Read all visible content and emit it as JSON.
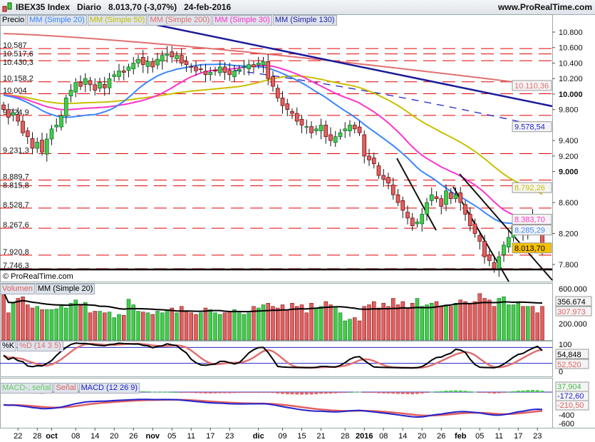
{
  "header": {
    "title": "IBEX35 Index   Diario   8.013,70 (-3,07%)   24-feb-2016",
    "site": "www.ProRealTime.com"
  },
  "price_legend": [
    {
      "label": "Precio",
      "color": "#000000"
    },
    {
      "label": "MM (Simple 20)",
      "color": "#3a86ff"
    },
    {
      "label": "MM (Simple 50)",
      "color": "#c8c000"
    },
    {
      "label": "MM (Simple 200)",
      "color": "#e07070"
    },
    {
      "label": "MM (Simple 30)",
      "color": "#ff33cc"
    },
    {
      "label": "MM (Simple 130)",
      "color": "#2222aa"
    }
  ],
  "volume_legend": [
    {
      "label": "Volumen",
      "color": "#e06060"
    },
    {
      "label": "MM (Simple 20)",
      "color": "#000000"
    }
  ],
  "stoch_legend": [
    {
      "label": "%K",
      "color": "#000000"
    },
    {
      "label": "%D (14 3 5)",
      "color": "#e07070"
    }
  ],
  "macd_legend": [
    {
      "label": "MACD-, señal",
      "color": "#66cc66"
    },
    {
      "label": "Señal",
      "color": "#e06060"
    },
    {
      "label": "MACD (12 26 9)",
      "color": "#2222cc"
    }
  ],
  "copyright": "© ProRealTime.com",
  "chart_data": {
    "type": "candlestick",
    "instrument": "IBEX35 Index",
    "period": "Diario",
    "last": "8.013,70",
    "change": "-3,07%",
    "date": "24-feb-2016",
    "ylim": [
      7600,
      10900
    ],
    "price_axis_ticks": [
      "10.800",
      "10.600",
      "10.400",
      "10.200",
      "10.000",
      "9.800",
      "9.400",
      "9.200",
      "9.000",
      "8.600",
      "8.200",
      "7.800"
    ],
    "price_axis_values": [
      10800,
      10600,
      10400,
      10200,
      10000,
      9800,
      9400,
      9200,
      9000,
      8600,
      8200,
      7800
    ],
    "levels": [
      {
        "label": "10.587",
        "v": 10587
      },
      {
        "label": "10.517,6",
        "v": 10517.6
      },
      {
        "label": "10.430,3",
        "v": 10430.3
      },
      {
        "label": "10.158,2",
        "v": 10158.2
      },
      {
        "label": "10.004",
        "v": 10004
      },
      {
        "label": "9.724,9",
        "v": 9724.9
      },
      {
        "label": "9.231,3",
        "v": 9231.3
      },
      {
        "label": "8.889,7",
        "v": 8889.7
      },
      {
        "label": "8.815,8",
        "v": 8815.8
      },
      {
        "label": "8.528,7",
        "v": 8528.7
      },
      {
        "label": "8.267,6",
        "v": 8267.6
      },
      {
        "label": "7.920,8",
        "v": 7920.8
      },
      {
        "label": "7.746,3",
        "v": 7746.3
      }
    ],
    "value_tags": [
      {
        "label": "10.110,36",
        "v": 10110.36,
        "color": "#e07070"
      },
      {
        "label": "9.578,54",
        "v": 9578.54,
        "color": "#2222cc"
      },
      {
        "label": "8.792,26",
        "v": 8792.26,
        "color": "#c8c000"
      },
      {
        "label": "8.383,70",
        "v": 8383.7,
        "color": "#ff33cc"
      },
      {
        "label": "8.285,29",
        "v": 8285.29,
        "color": "#3a86ff"
      },
      {
        "label": "8.013,70",
        "v": 8013.7,
        "color": "#000000",
        "bg": "#f5c000"
      }
    ],
    "closes": [
      9800,
      9700,
      9760,
      9650,
      9500,
      9450,
      9300,
      9380,
      9250,
      9420,
      9550,
      9600,
      9720,
      9950,
      10050,
      10150,
      10100,
      10200,
      10120,
      10050,
      10150,
      10080,
      10200,
      10250,
      10300,
      10280,
      10350,
      10400,
      10450,
      10380,
      10420,
      10350,
      10450,
      10500,
      10520,
      10480,
      10500,
      10400,
      10380,
      10350,
      10300,
      10320,
      10250,
      10280,
      10300,
      10350,
      10280,
      10250,
      10300,
      10320,
      10350,
      10380,
      10350,
      10400,
      10420,
      10200,
      10100,
      9950,
      9850,
      9800,
      9750,
      9650,
      9600,
      9580,
      9500,
      9550,
      9600,
      9450,
      9400,
      9450,
      9500,
      9550,
      9600,
      9550,
      9500,
      9200,
      9150,
      9100,
      8950,
      8900,
      8850,
      8700,
      8600,
      8500,
      8400,
      8300,
      8350,
      8450,
      8600,
      8700,
      8650,
      8550,
      8750,
      8650,
      8700,
      8600,
      8450,
      8300,
      8200,
      8100,
      7900,
      7850,
      7750,
      7900,
      8050,
      8150,
      8300,
      8350,
      8200,
      8400,
      8350,
      8250,
      8013.7
    ],
    "ma200": {
      "start": 10780,
      "end": 10110.36
    },
    "ma130": {
      "start": 10560,
      "end": 9578.54
    },
    "volume_k": [
      560,
      300,
      420,
      480,
      500,
      400,
      360,
      380,
      340,
      340,
      340,
      350,
      400,
      360,
      420,
      460,
      400,
      430,
      300,
      320,
      320,
      300,
      310,
      240,
      280,
      270,
      470,
      400,
      320,
      310,
      300,
      280,
      320,
      300,
      340,
      360,
      300,
      380,
      320,
      300,
      280,
      300,
      360,
      340,
      300,
      280,
      300,
      320,
      340,
      300,
      280,
      300,
      380,
      360,
      400,
      420,
      380,
      360,
      400,
      340,
      420,
      380,
      400,
      300,
      420,
      360,
      380,
      440,
      400,
      380,
      300,
      200,
      220,
      240,
      200,
      380,
      400,
      440,
      360,
      420,
      380,
      480,
      400,
      440,
      360,
      420,
      480,
      380,
      400,
      420,
      440,
      380,
      400,
      380,
      420,
      460,
      440,
      420,
      440,
      540,
      480,
      460,
      380,
      480,
      500,
      400,
      400,
      420,
      380,
      380,
      380,
      300,
      380
    ],
    "volume_axis": [
      "600.000",
      "200.000"
    ],
    "volume_tags": [
      {
        "label": "356.674",
        "color": "#000000"
      },
      {
        "label": "307.973",
        "color": "#e06060"
      }
    ],
    "stoch_axis": [
      "100",
      "0"
    ],
    "stoch_tags": [
      {
        "label": "54,848",
        "color": "#000000"
      },
      {
        "label": "52,520",
        "color": "#e06060"
      }
    ],
    "macd_axis": [
      "-400",
      "-600"
    ],
    "macd_tags": [
      {
        "label": "37,904",
        "color": "#44bb44"
      },
      {
        "label": "-172,60",
        "color": "#2222cc"
      },
      {
        "label": "-210,50",
        "color": "#e06060"
      }
    ],
    "x_ticks": [
      {
        "label": "22",
        "i": 3
      },
      {
        "label": "28",
        "i": 7
      },
      {
        "label": "oct",
        "i": 10,
        "bold": true
      },
      {
        "label": "08",
        "i": 15
      },
      {
        "label": "14",
        "i": 19
      },
      {
        "label": "20",
        "i": 23
      },
      {
        "label": "26",
        "i": 27
      },
      {
        "label": "nov",
        "i": 31,
        "bold": true
      },
      {
        "label": "05",
        "i": 35
      },
      {
        "label": "11",
        "i": 39
      },
      {
        "label": "17",
        "i": 43
      },
      {
        "label": "23",
        "i": 47
      },
      {
        "label": "dic",
        "i": 53,
        "bold": true
      },
      {
        "label": "09",
        "i": 58
      },
      {
        "label": "15",
        "i": 62
      },
      {
        "label": "21",
        "i": 66
      },
      {
        "label": "28",
        "i": 71
      },
      {
        "label": "2016",
        "i": 75,
        "bold": true
      },
      {
        "label": "08",
        "i": 79
      },
      {
        "label": "14",
        "i": 83
      },
      {
        "label": "20",
        "i": 87
      },
      {
        "label": "26",
        "i": 91
      },
      {
        "label": "feb",
        "i": 95,
        "bold": true
      },
      {
        "label": "05",
        "i": 99
      },
      {
        "label": "11",
        "i": 103
      },
      {
        "label": "17",
        "i": 107
      },
      {
        "label": "23",
        "i": 111
      }
    ]
  }
}
